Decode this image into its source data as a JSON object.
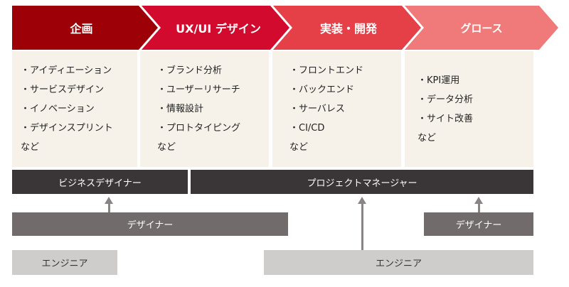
{
  "phases": [
    {
      "title": "企画",
      "color": "#9e0008",
      "items": [
        "・アイディエーション",
        "・サービスデザイン",
        "・イノベーション",
        "・デザインスプリント",
        "など"
      ]
    },
    {
      "title": "UX/UI デザイン",
      "color": "#d20a2e",
      "items": [
        "・ブランド分析",
        "・ユーザーリサーチ",
        "・情報設計",
        "・プロトタイピング",
        "など"
      ]
    },
    {
      "title": "実装・開発",
      "color": "#e54048",
      "items": [
        "・フロントエンド",
        "・バックエンド",
        "・サーバレス",
        "・CI/CD",
        "など"
      ]
    },
    {
      "title": "グロース",
      "color": "#f07a7a",
      "items": [
        "・KPI運用",
        "・データ分析",
        "・サイト改善",
        "など"
      ]
    }
  ],
  "roles": {
    "business_designer": "ビジネスデザイナー",
    "project_manager": "プロジェクトマネージャー",
    "designer_left": "デザイナー",
    "designer_right": "デザイナー",
    "engineer_left": "エンジニア",
    "engineer_right": "エンジニア"
  }
}
